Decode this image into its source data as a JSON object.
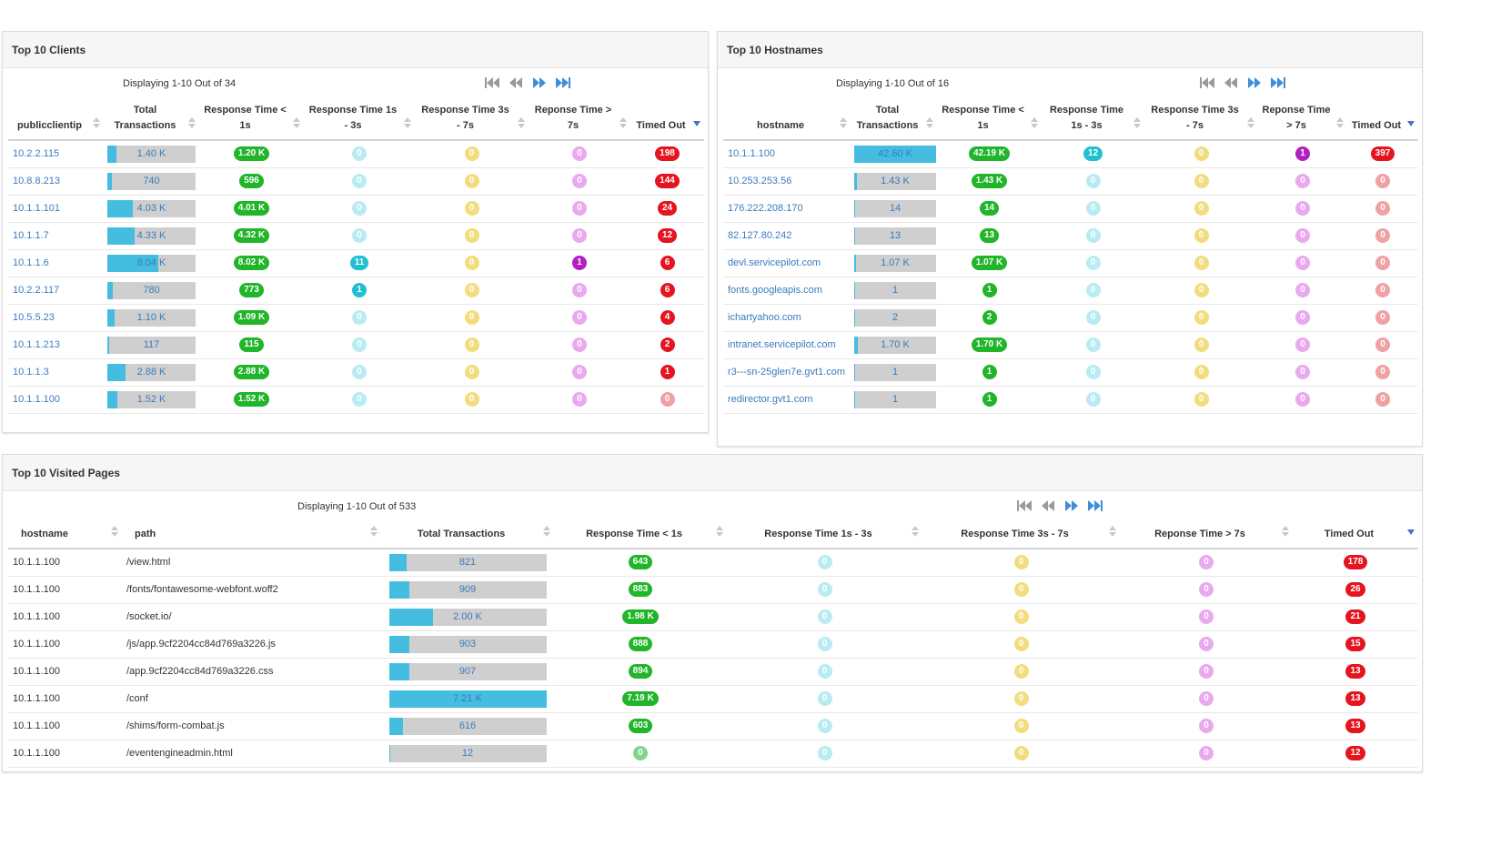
{
  "colors": {
    "bar_fill": "#45bde0",
    "bar_track": "#cfcfcf",
    "link": "#3a7bbf",
    "pager": "#3f8fd6",
    "pager_disabled": "#9a9a9a"
  },
  "clients": {
    "title": "Top 10 Clients",
    "display": "Displaying 1-10 Out of 34",
    "headers": [
      "publicclientip",
      "Total Transactions",
      "Response Time < 1s",
      "Response Time 1s - 3s",
      "Response Time 3s - 7s",
      "Reponse Time > 7s",
      "Timed Out"
    ],
    "rows": [
      {
        "ip": "10.2.2.115",
        "total": "1.40 K",
        "frac": 0.1,
        "lt1": "1.20 K",
        "r13": "0",
        "r37": "0",
        "gt7": "0",
        "timeout": "198"
      },
      {
        "ip": "10.8.8.213",
        "total": "740",
        "frac": 0.05,
        "lt1": "596",
        "r13": "0",
        "r37": "0",
        "gt7": "0",
        "timeout": "144"
      },
      {
        "ip": "10.1.1.101",
        "total": "4.03 K",
        "frac": 0.29,
        "lt1": "4.01 K",
        "r13": "0",
        "r37": "0",
        "gt7": "0",
        "timeout": "24"
      },
      {
        "ip": "10.1.1.7",
        "total": "4.33 K",
        "frac": 0.31,
        "lt1": "4.32 K",
        "r13": "0",
        "r37": "0",
        "gt7": "0",
        "timeout": "12"
      },
      {
        "ip": "10.1.1.6",
        "total": "8.04 K",
        "frac": 0.58,
        "lt1": "8.02 K",
        "r13": "11",
        "r37": "0",
        "gt7": "1",
        "timeout": "6"
      },
      {
        "ip": "10.2.2.117",
        "total": "780",
        "frac": 0.06,
        "lt1": "773",
        "r13": "1",
        "r37": "0",
        "gt7": "0",
        "timeout": "6"
      },
      {
        "ip": "10.5.5.23",
        "total": "1.10 K",
        "frac": 0.08,
        "lt1": "1.09 K",
        "r13": "0",
        "r37": "0",
        "gt7": "0",
        "timeout": "4"
      },
      {
        "ip": "10.1.1.213",
        "total": "117",
        "frac": 0.01,
        "lt1": "115",
        "r13": "0",
        "r37": "0",
        "gt7": "0",
        "timeout": "2"
      },
      {
        "ip": "10.1.1.3",
        "total": "2.88 K",
        "frac": 0.21,
        "lt1": "2.88 K",
        "r13": "0",
        "r37": "0",
        "gt7": "0",
        "timeout": "1"
      },
      {
        "ip": "10.1.1.100",
        "total": "1.52 K",
        "frac": 0.11,
        "lt1": "1.52 K",
        "r13": "0",
        "r37": "0",
        "gt7": "0",
        "timeout": "0"
      }
    ]
  },
  "hostnames": {
    "title": "Top 10 Hostnames",
    "display": "Displaying 1-10 Out of 16",
    "headers": [
      "hostname",
      "Total Transactions",
      "Response Time < 1s",
      "Response Time 1s - 3s",
      "Response Time 3s - 7s",
      "Reponse Time > 7s",
      "Timed Out"
    ],
    "rows": [
      {
        "host": "10.1.1.100",
        "total": "42.60 K",
        "frac": 1.0,
        "lt1": "42.19 K",
        "r13": "12",
        "r37": "0",
        "gt7": "1",
        "timeout": "397"
      },
      {
        "host": "10.253.253.56",
        "total": "1.43 K",
        "frac": 0.03,
        "lt1": "1.43 K",
        "r13": "0",
        "r37": "0",
        "gt7": "0",
        "timeout": "0"
      },
      {
        "host": "176.222.208.170",
        "total": "14",
        "frac": 0.0,
        "lt1": "14",
        "r13": "0",
        "r37": "0",
        "gt7": "0",
        "timeout": "0"
      },
      {
        "host": "82.127.80.242",
        "total": "13",
        "frac": 0.0,
        "lt1": "13",
        "r13": "0",
        "r37": "0",
        "gt7": "0",
        "timeout": "0"
      },
      {
        "host": "devl.servicepilot.com",
        "total": "1.07 K",
        "frac": 0.025,
        "lt1": "1.07 K",
        "r13": "0",
        "r37": "0",
        "gt7": "0",
        "timeout": "0"
      },
      {
        "host": "fonts.googleapis.com",
        "total": "1",
        "frac": 0.0,
        "lt1": "1",
        "r13": "0",
        "r37": "0",
        "gt7": "0",
        "timeout": "0"
      },
      {
        "host": "ichartyahoo.com",
        "total": "2",
        "frac": 0.0,
        "lt1": "2",
        "r13": "0",
        "r37": "0",
        "gt7": "0",
        "timeout": "0"
      },
      {
        "host": "intranet.servicepilot.com",
        "total": "1.70 K",
        "frac": 0.04,
        "lt1": "1.70 K",
        "r13": "0",
        "r37": "0",
        "gt7": "0",
        "timeout": "0"
      },
      {
        "host": "r3---sn-25glen7e.gvt1.com",
        "total": "1",
        "frac": 0.0,
        "lt1": "1",
        "r13": "0",
        "r37": "0",
        "gt7": "0",
        "timeout": "0"
      },
      {
        "host": "redirector.gvt1.com",
        "total": "1",
        "frac": 0.0,
        "lt1": "1",
        "r13": "0",
        "r37": "0",
        "gt7": "0",
        "timeout": "0"
      }
    ]
  },
  "pages": {
    "title": "Top 10 Visited Pages",
    "display": "Displaying 1-10 Out of 533",
    "headers": [
      "hostname",
      "path",
      "Total Transactions",
      "Response Time < 1s",
      "Response Time 1s - 3s",
      "Response Time 3s - 7s",
      "Reponse Time > 7s",
      "Timed Out"
    ],
    "rows": [
      {
        "host": "10.1.1.100",
        "path": "/view.html",
        "total": "821",
        "frac": 0.11,
        "lt1": "643",
        "r13": "0",
        "r37": "0",
        "gt7": "0",
        "timeout": "178"
      },
      {
        "host": "10.1.1.100",
        "path": "/fonts/fontawesome-webfont.woff2",
        "total": "909",
        "frac": 0.13,
        "lt1": "883",
        "r13": "0",
        "r37": "0",
        "gt7": "0",
        "timeout": "26"
      },
      {
        "host": "10.1.1.100",
        "path": "/socket.io/",
        "total": "2.00 K",
        "frac": 0.28,
        "lt1": "1.98 K",
        "r13": "0",
        "r37": "0",
        "gt7": "0",
        "timeout": "21"
      },
      {
        "host": "10.1.1.100",
        "path": "/js/app.9cf2204cc84d769a3226.js",
        "total": "903",
        "frac": 0.13,
        "lt1": "888",
        "r13": "0",
        "r37": "0",
        "gt7": "0",
        "timeout": "15"
      },
      {
        "host": "10.1.1.100",
        "path": "/app.9cf2204cc84d769a3226.css",
        "total": "907",
        "frac": 0.13,
        "lt1": "894",
        "r13": "0",
        "r37": "0",
        "gt7": "0",
        "timeout": "13"
      },
      {
        "host": "10.1.1.100",
        "path": "/conf",
        "total": "7.21 K",
        "frac": 1.0,
        "lt1": "7.19 K",
        "r13": "0",
        "r37": "0",
        "gt7": "0",
        "timeout": "13"
      },
      {
        "host": "10.1.1.100",
        "path": "/shims/form-combat.js",
        "total": "616",
        "frac": 0.09,
        "lt1": "603",
        "r13": "0",
        "r37": "0",
        "gt7": "0",
        "timeout": "13"
      },
      {
        "host": "10.1.1.100",
        "path": "/eventengineadmin.html",
        "total": "12",
        "frac": 0.0,
        "lt1": "0",
        "r13": "0",
        "r37": "0",
        "gt7": "0",
        "timeout": "12"
      }
    ]
  }
}
